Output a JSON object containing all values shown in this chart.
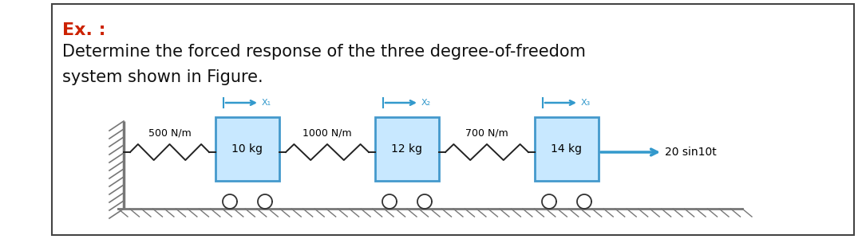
{
  "title_ex": "Ex. :",
  "title_ex_color": "#cc2200",
  "description_line1": "Determine the forced response of the three degree-of-freedom",
  "description_line2": "system shown in Figure.",
  "text_color": "#111111",
  "bg_color": "#ffffff",
  "border_color": "#444444",
  "box_color_face": "#c8e8ff",
  "box_color_edge": "#4499cc",
  "wall_color": "#777777",
  "ground_color": "#777777",
  "arrow_color": "#3399cc",
  "masses": [
    "10 kg",
    "12 kg",
    "14 kg"
  ],
  "springs": [
    "500 N/m",
    "1000 N/m",
    "700 N/m"
  ],
  "force_label": "20 sin10t",
  "disp_labels": [
    "X₁",
    "X₂",
    "X₃"
  ],
  "font_size_ex": 16,
  "font_size_text": 15,
  "font_size_diagram": 9,
  "font_size_disp": 8
}
